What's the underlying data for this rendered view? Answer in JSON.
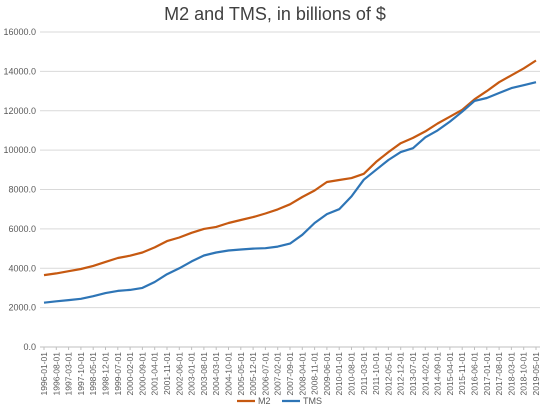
{
  "chart_data": {
    "type": "line",
    "title": "M2 and TMS, in billions of $",
    "xlabel": "",
    "ylabel": "",
    "ylim": [
      0,
      16000
    ],
    "yticks": [
      "0.0",
      "2000.0",
      "4000.0",
      "6000.0",
      "8000.0",
      "10000.0",
      "12000.0",
      "14000.0",
      "16000.0"
    ],
    "grid": true,
    "legend_position": "bottom",
    "x": [
      "1996-01-01",
      "1996-08-01",
      "1997-03-01",
      "1997-10-01",
      "1998-05-01",
      "1998-12-01",
      "1999-07-01",
      "2000-02-01",
      "2000-09-01",
      "2001-04-01",
      "2001-11-01",
      "2002-06-01",
      "2003-01-01",
      "2003-08-01",
      "2004-03-01",
      "2004-10-01",
      "2005-05-01",
      "2005-12-01",
      "2006-07-01",
      "2007-02-01",
      "2007-09-01",
      "2008-04-01",
      "2008-11-01",
      "2009-06-01",
      "2010-01-01",
      "2010-08-01",
      "2011-03-01",
      "2011-10-01",
      "2012-05-01",
      "2012-12-01",
      "2013-07-01",
      "2014-02-01",
      "2014-09-01",
      "2015-04-01",
      "2015-11-01",
      "2016-06-01",
      "2017-01-01",
      "2017-08-01",
      "2018-03-01",
      "2018-10-01",
      "2019-05-01"
    ],
    "series": [
      {
        "name": "M2",
        "color": "#c65911",
        "values": [
          3650,
          3740,
          3850,
          3960,
          4120,
          4320,
          4520,
          4640,
          4800,
          5060,
          5380,
          5560,
          5800,
          6000,
          6100,
          6300,
          6450,
          6600,
          6780,
          6990,
          7250,
          7620,
          7950,
          8380,
          8480,
          8580,
          8800,
          9400,
          9900,
          10350,
          10620,
          10950,
          11350,
          11700,
          12050,
          12580,
          13000,
          13450,
          13800,
          14150,
          14550
        ]
      },
      {
        "name": "TMS",
        "color": "#2e75b6",
        "values": [
          2250,
          2320,
          2380,
          2450,
          2580,
          2740,
          2850,
          2900,
          3000,
          3300,
          3700,
          4000,
          4350,
          4650,
          4800,
          4900,
          4950,
          5000,
          5020,
          5100,
          5250,
          5700,
          6300,
          6750,
          7000,
          7650,
          8500,
          9000,
          9500,
          9900,
          10100,
          10650,
          11000,
          11450,
          11950,
          12500,
          12650,
          12900,
          13150,
          13300,
          13450
        ]
      }
    ]
  }
}
